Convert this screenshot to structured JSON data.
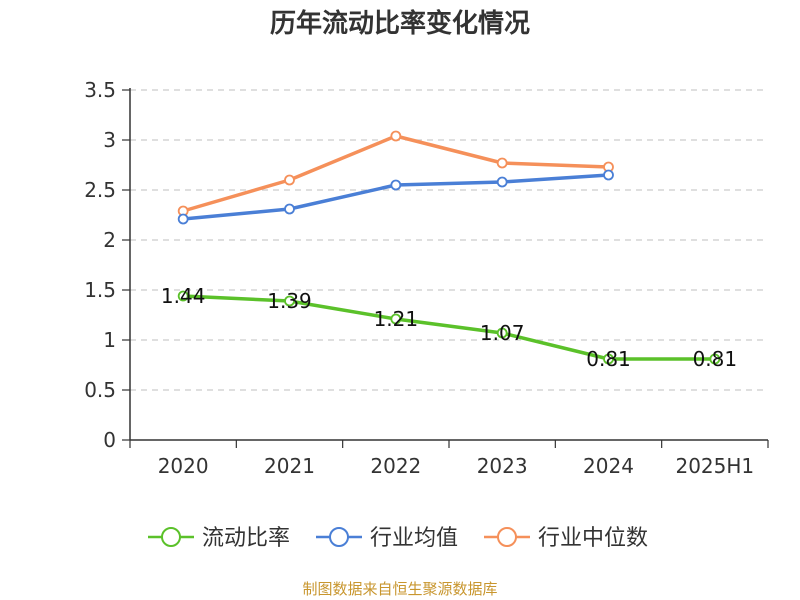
{
  "chart_data": {
    "type": "line",
    "title": "历年流动比率变化情况",
    "categories": [
      "2020",
      "2021",
      "2022",
      "2023",
      "2024",
      "2025H1"
    ],
    "ylim": [
      0,
      3.5
    ],
    "yticks": [
      "0",
      "0.5",
      "1",
      "1.5",
      "2",
      "2.5",
      "3",
      "3.5"
    ],
    "grid": true,
    "legend_position": "bottom",
    "series": [
      {
        "name": "流动比率",
        "color": "#5bc12a",
        "values": [
          1.44,
          1.39,
          1.21,
          1.07,
          0.81,
          0.81
        ],
        "labels": [
          "1.44",
          "1.39",
          "1.21",
          "1.07",
          "0.81",
          "0.81"
        ]
      },
      {
        "name": "行业均值",
        "color": "#4a7fd6",
        "values": [
          2.21,
          2.31,
          2.55,
          2.58,
          2.65,
          null
        ]
      },
      {
        "name": "行业中位数",
        "color": "#f5905a",
        "values": [
          2.29,
          2.6,
          3.04,
          2.77,
          2.73,
          null
        ]
      }
    ]
  },
  "source": "制图数据来自恒生聚源数据库"
}
